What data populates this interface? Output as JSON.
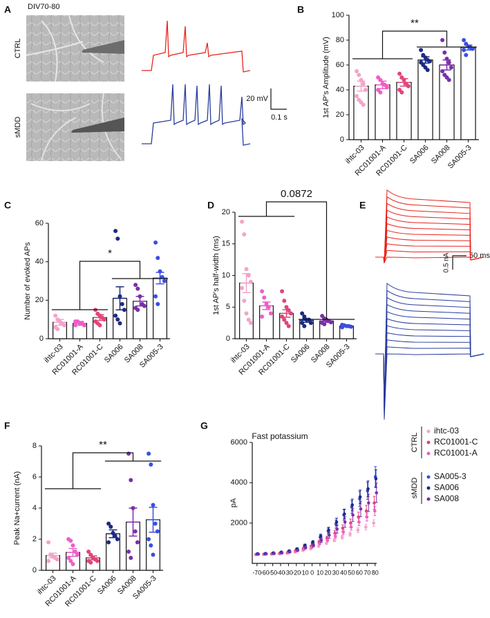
{
  "panel_a": {
    "label": "A",
    "title": "DIV70-80",
    "rows": [
      "CTRL",
      "sMDD"
    ],
    "scale_bar": {
      "y": "20 mV",
      "x": "0.1 s"
    }
  },
  "panel_e": {
    "label": "E",
    "scale_bar": {
      "y": "0.5 nA",
      "x": "50 ms"
    }
  },
  "chart_data": [
    {
      "type": "bar",
      "panel": "B",
      "ylabel": "1st AP's Amplitude (mV)",
      "categories": [
        "ihtc-03",
        "RC01001-A",
        "RC01001-C",
        "SA006",
        "SA008",
        "SA005-3"
      ],
      "colors": [
        "#f4a3c9",
        "#ee5fc6",
        "#e0457b",
        "#1c2a80",
        "#7b2fa8",
        "#3a4fe0"
      ],
      "values": [
        43,
        44,
        46,
        64,
        60,
        74
      ],
      "errors": [
        4,
        3,
        3,
        2.5,
        4,
        2
      ],
      "points": [
        [
          55,
          52,
          48,
          45,
          40,
          35,
          32,
          30,
          28
        ],
        [
          50,
          48,
          45,
          44,
          42,
          40,
          38
        ],
        [
          53,
          50,
          48,
          45,
          43,
          40,
          38
        ],
        [
          72,
          68,
          66,
          64,
          63,
          62,
          60,
          58,
          56
        ],
        [
          80,
          70,
          65,
          62,
          58,
          55,
          52,
          50,
          48
        ],
        [
          80,
          77,
          75,
          74,
          73,
          72,
          68
        ]
      ],
      "ylim": [
        0,
        100
      ],
      "yticks": [
        0,
        20,
        40,
        60,
        80,
        100
      ],
      "significance": "**"
    },
    {
      "type": "bar",
      "panel": "C",
      "ylabel": "Number of evoked APs",
      "categories": [
        "ihtc-03",
        "RC01001-A",
        "RC01001-C",
        "SA006",
        "SA008",
        "SA005-3"
      ],
      "colors": [
        "#f4a3c9",
        "#ee5fc6",
        "#e0457b",
        "#1c2a80",
        "#7b2fa8",
        "#3a4fe0"
      ],
      "values": [
        8.5,
        8,
        11,
        21,
        19.5,
        31.5
      ],
      "errors": [
        1.5,
        1,
        1.5,
        6,
        2.5,
        3
      ],
      "points": [
        [
          12,
          10,
          9,
          8,
          7,
          6,
          5
        ],
        [
          9,
          9,
          8,
          8,
          7,
          7
        ],
        [
          15,
          13,
          12,
          11,
          10,
          9,
          8,
          7
        ],
        [
          56,
          52,
          22,
          18,
          15,
          12,
          10,
          8
        ],
        [
          28,
          26,
          22,
          18,
          17,
          16,
          15
        ],
        [
          50,
          42,
          35,
          32,
          30,
          22,
          18
        ]
      ],
      "ylim": [
        0,
        60
      ],
      "yticks": [
        0,
        20,
        40,
        60
      ],
      "significance": "*"
    },
    {
      "type": "bar",
      "panel": "D",
      "ylabel": "1st AP's half-width (ms)",
      "categories": [
        "ihtc-03",
        "RC01001-A",
        "RC01001-C",
        "SA006",
        "SA008",
        "SA005-3"
      ],
      "colors": [
        "#f4a3c9",
        "#ee5fc6",
        "#e0457b",
        "#1c2a80",
        "#7b2fa8",
        "#3a4fe0"
      ],
      "values": [
        8.8,
        5.2,
        4.0,
        2.9,
        2.8,
        2.0
      ],
      "errors": [
        1.5,
        0.6,
        0.6,
        0.3,
        0.2,
        0.1
      ],
      "points": [
        [
          18.5,
          16.5,
          11,
          10,
          9,
          8,
          6,
          4,
          3,
          2.5
        ],
        [
          7.5,
          6.5,
          5.5,
          5,
          4,
          3.5
        ],
        [
          7.5,
          6,
          5,
          4.5,
          4,
          3.5,
          3,
          2.5,
          2
        ],
        [
          4,
          3.5,
          3,
          3,
          2.5,
          2.5,
          2
        ],
        [
          3.6,
          3.2,
          3,
          2.8,
          2.6,
          2.5,
          2.3
        ],
        [
          2.2,
          2.1,
          2,
          2,
          1.9,
          1.8
        ]
      ],
      "ylim": [
        0,
        20
      ],
      "yticks": [
        0,
        5,
        10,
        15,
        20
      ],
      "significance": "0.0872"
    },
    {
      "type": "bar",
      "panel": "F",
      "ylabel": "Peak Na+current (nA)",
      "categories": [
        "ihtc-03",
        "RC01001-A",
        "RC01001-C",
        "SA006",
        "SA008",
        "SA005-3"
      ],
      "colors": [
        "#f4a3c9",
        "#ee5fc6",
        "#e0457b",
        "#1c2a80",
        "#7b2fa8",
        "#3a4fe0"
      ],
      "values": [
        0.95,
        1.15,
        0.8,
        2.35,
        3.1,
        3.25
      ],
      "errors": [
        0.15,
        0.25,
        0.12,
        0.25,
        0.9,
        0.8
      ],
      "points": [
        [
          1.8,
          1.0,
          0.9,
          0.8,
          0.7,
          0.6
        ],
        [
          2.0,
          1.9,
          1.6,
          1.2,
          1.0,
          0.8,
          0.6,
          0.4
        ],
        [
          1.2,
          1.0,
          0.8,
          0.7,
          0.6,
          0.6,
          0.5
        ],
        [
          3.0,
          2.8,
          2.4,
          2.2,
          2.0,
          1.8
        ],
        [
          7.5,
          5.8,
          4.0,
          2.5,
          1.8,
          1.2,
          0.8
        ],
        [
          7.5,
          6.8,
          4.2,
          3.0,
          2.5,
          2.0,
          1.6,
          1.0
        ]
      ],
      "ylim": [
        0,
        8
      ],
      "yticks": [
        0,
        2,
        4,
        6,
        8
      ],
      "significance": "**"
    },
    {
      "type": "line",
      "panel": "G",
      "title": "Fast potassium",
      "ylabel": "pA",
      "x": [
        -70,
        -60,
        -50,
        -40,
        -30,
        -20,
        -10,
        0,
        10,
        20,
        30,
        40,
        50,
        60,
        70,
        80
      ],
      "xlim": [
        -76,
        82
      ],
      "xticks": [
        -70,
        -60,
        -50,
        -40,
        -30,
        -20,
        -10,
        0,
        10,
        20,
        30,
        40,
        50,
        60,
        70,
        80
      ],
      "ylim": [
        0,
        6000
      ],
      "yticks": [
        2000,
        4000,
        6000
      ],
      "series": [
        {
          "name": "ihtc-03",
          "group": "CTRL",
          "color": "#f4a3c9",
          "values": [
            430,
            440,
            450,
            470,
            500,
            560,
            640,
            720,
            850,
            1000,
            1150,
            1300,
            1450,
            1650,
            1800,
            2000
          ],
          "errors": [
            20,
            20,
            20,
            20,
            25,
            30,
            30,
            40,
            50,
            60,
            80,
            90,
            100,
            120,
            140,
            160
          ]
        },
        {
          "name": "RC01001-C",
          "group": "CTRL",
          "color": "#e0457b",
          "values": [
            450,
            460,
            480,
            500,
            540,
            620,
            740,
            850,
            1050,
            1250,
            1500,
            1750,
            2000,
            2300,
            2600,
            3000
          ],
          "errors": [
            20,
            20,
            25,
            25,
            30,
            35,
            45,
            60,
            80,
            100,
            130,
            160,
            200,
            240,
            280,
            320
          ]
        },
        {
          "name": "RC01001-A",
          "group": "CTRL",
          "color": "#ee5fc6",
          "values": [
            440,
            450,
            470,
            490,
            530,
            600,
            700,
            800,
            980,
            1150,
            1350,
            1550,
            1800,
            2050,
            2300,
            2600
          ],
          "errors": [
            20,
            20,
            20,
            25,
            25,
            30,
            40,
            50,
            60,
            80,
            100,
            120,
            150,
            180,
            200,
            230
          ]
        },
        {
          "name": "SA005-3",
          "group": "sMDD",
          "color": "#3a4fe0",
          "values": [
            470,
            480,
            510,
            540,
            600,
            700,
            860,
            1000,
            1300,
            1600,
            1950,
            2400,
            2800,
            3200,
            3600,
            4300
          ],
          "errors": [
            25,
            25,
            30,
            35,
            40,
            50,
            60,
            80,
            110,
            150,
            200,
            260,
            320,
            380,
            430,
            500
          ]
        },
        {
          "name": "SA006",
          "group": "sMDD",
          "color": "#1c2a80",
          "values": [
            480,
            490,
            520,
            560,
            620,
            720,
            900,
            1050,
            1350,
            1650,
            2050,
            2450,
            2900,
            3300,
            3700,
            4200
          ],
          "errors": [
            25,
            25,
            30,
            35,
            40,
            50,
            60,
            80,
            100,
            140,
            190,
            240,
            290,
            340,
            390,
            440
          ]
        },
        {
          "name": "SA008",
          "group": "sMDD",
          "color": "#7b2fa8",
          "values": [
            460,
            470,
            490,
            520,
            570,
            650,
            780,
            900,
            1150,
            1400,
            1700,
            2050,
            2400,
            2700,
            3000,
            3500
          ],
          "errors": [
            25,
            25,
            30,
            35,
            40,
            50,
            60,
            80,
            110,
            150,
            200,
            260,
            320,
            380,
            430,
            480
          ]
        }
      ]
    }
  ]
}
